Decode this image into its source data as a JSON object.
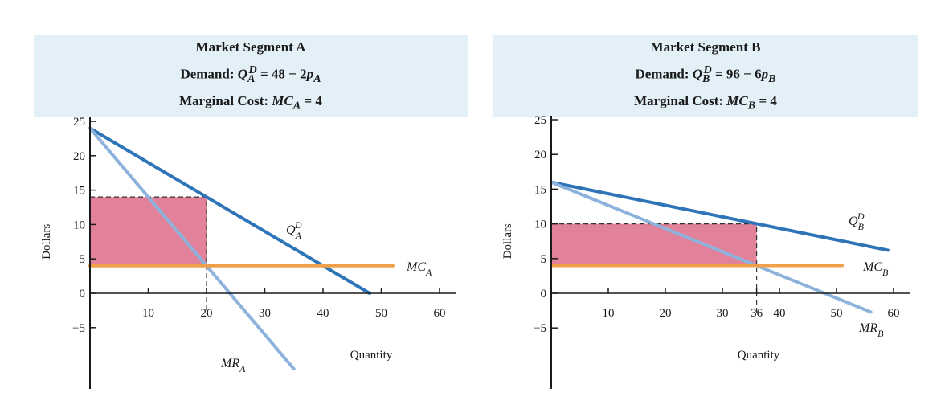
{
  "chart_data": [
    {
      "type": "line",
      "title": "Market Segment A",
      "subtitle_demand": "Demand: Q_A^D = 48 − 2p_A",
      "subtitle_demand_prefix": "Demand: ",
      "subtitle_demand_q": "Q",
      "subtitle_demand_sup": "D",
      "subtitle_demand_sub": "A",
      "subtitle_demand_rhs": " = 48 − 2",
      "subtitle_demand_p": "p",
      "subtitle_demand_psub": "A",
      "subtitle_mc_prefix": "Marginal Cost: ",
      "subtitle_mc_mc": "MC",
      "subtitle_mc_sub": "A",
      "subtitle_mc_rhs": " = 4",
      "xlabel": "Quantity",
      "ylabel": "Dollars",
      "xlim": [
        0,
        62
      ],
      "ylim": [
        -11,
        25
      ],
      "xticks": [
        10,
        20,
        30,
        40,
        50,
        60
      ],
      "yticks": [
        25,
        20,
        15,
        10,
        5,
        0,
        -5
      ],
      "series": [
        {
          "name": "Q_A^D",
          "label_main": "Q",
          "label_sup": "D",
          "label_sub": "A",
          "x": [
            0,
            48
          ],
          "y": [
            24,
            0
          ],
          "color": "#2e74b8"
        },
        {
          "name": "MR_A",
          "label_main": "MR",
          "label_sub": "A",
          "x": [
            0,
            35
          ],
          "y": [
            24,
            -11
          ],
          "color": "#8db3dc"
        },
        {
          "name": "MC_A",
          "label_main": "MC",
          "label_sub": "A",
          "x": [
            0,
            52
          ],
          "y": [
            4,
            4
          ],
          "color": "#f0a04b"
        }
      ],
      "profit_rect": {
        "q": 20,
        "price": 14,
        "mc": 4,
        "color": "#e07a95"
      }
    },
    {
      "type": "line",
      "title": "Market Segment B",
      "subtitle_demand_prefix": "Demand: ",
      "subtitle_demand_q": "Q",
      "subtitle_demand_sup": "D",
      "subtitle_demand_sub": "B",
      "subtitle_demand_rhs": " = 96 − 6",
      "subtitle_demand_p": "p",
      "subtitle_demand_psub": "B",
      "subtitle_mc_prefix": "Marginal Cost: ",
      "subtitle_mc_mc": "MC",
      "subtitle_mc_sub": "B",
      "subtitle_mc_rhs": " = 4",
      "xlabel": "Quantity",
      "ylabel": "Dollars",
      "xlim": [
        0,
        62
      ],
      "ylim": [
        -11,
        25
      ],
      "xticks": [
        10,
        20,
        30,
        36,
        40,
        50,
        60
      ],
      "yticks": [
        25,
        20,
        15,
        10,
        5,
        0,
        -5
      ],
      "series": [
        {
          "name": "Q_B^D",
          "label_main": "Q",
          "label_sup": "D",
          "label_sub": "B",
          "x": [
            0,
            59
          ],
          "y": [
            16,
            6.2
          ],
          "color": "#2e74b8"
        },
        {
          "name": "MR_B",
          "label_main": "MR",
          "label_sub": "B",
          "x": [
            0,
            56
          ],
          "y": [
            16,
            -2.7
          ],
          "color": "#8db3dc"
        },
        {
          "name": "MC_B",
          "label_main": "MC",
          "label_sub": "B",
          "x": [
            0,
            51
          ],
          "y": [
            4,
            4
          ],
          "color": "#f0a04b"
        }
      ],
      "profit_rect": {
        "q": 36,
        "price": 10,
        "mc": 4,
        "color": "#e07a95"
      }
    }
  ]
}
